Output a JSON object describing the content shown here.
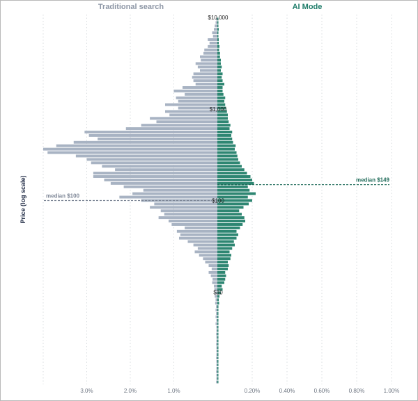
{
  "header": {
    "left_title": "Traditional search",
    "right_title": "AI Mode"
  },
  "colors": {
    "left_bar": "#a8b3c3",
    "right_bar": "#2e8672",
    "left_title": "#8e97a6",
    "right_title": "#1f7d6a",
    "grid": "#d8dcdf",
    "axis_label": "#1f2a44",
    "tick_label": "#6c7480",
    "left_median": "#7d8696",
    "right_median": "#1f6b59"
  },
  "chart_data": {
    "type": "bar",
    "orientation": "back-to-back horizontal histogram",
    "ylabel": "Price (log scale)",
    "y_scale": "log",
    "y_range": [
      1,
      10000
    ],
    "y_ticks": [
      {
        "value": 10000,
        "label": "$10,000"
      },
      {
        "value": 1000,
        "label": "$1,000"
      },
      {
        "value": 100,
        "label": "$100"
      },
      {
        "value": 10,
        "label": "$10"
      }
    ],
    "left_axis": {
      "unit": "%",
      "max": 4.0,
      "ticks": [
        {
          "value": 3.0,
          "label": "3.0%"
        },
        {
          "value": 2.0,
          "label": "2.0%"
        },
        {
          "value": 1.0,
          "label": "1.0%"
        }
      ]
    },
    "right_axis": {
      "unit": "%",
      "max": 1.0,
      "ticks": [
        {
          "value": 0.2,
          "label": "0.20%"
        },
        {
          "value": 0.4,
          "label": "0.40%"
        },
        {
          "value": 0.6,
          "label": "0.60%"
        },
        {
          "value": 0.8,
          "label": "0.80%"
        },
        {
          "value": 1.0,
          "label": "1.00%"
        }
      ]
    },
    "medians": [
      {
        "side": "left",
        "value": 100,
        "label": "median $100"
      },
      {
        "side": "right",
        "value": 149,
        "label": "median $149"
      }
    ],
    "series": [
      {
        "name": "Traditional search",
        "values": [
          0.03,
          0.02,
          0.02,
          0.03,
          0.02,
          0.02,
          0.02,
          0.03,
          0.02,
          0.02,
          0.02,
          0.03,
          0.02,
          0.02,
          0.03,
          0.02,
          0.02,
          0.04,
          0.02,
          0.04,
          0.03,
          0.04,
          0.03,
          0.05,
          0.04,
          0.06,
          0.05,
          0.07,
          0.08,
          0.12,
          0.11,
          0.15,
          0.2,
          0.13,
          0.2,
          0.28,
          0.33,
          0.42,
          0.52,
          0.45,
          0.55,
          0.68,
          0.88,
          0.85,
          0.93,
          0.75,
          1.05,
          1.12,
          1.35,
          1.22,
          1.3,
          1.55,
          1.45,
          1.75,
          2.25,
          1.95,
          1.7,
          2.15,
          2.45,
          2.6,
          2.85,
          2.85,
          2.35,
          2.65,
          2.9,
          3.0,
          3.25,
          3.9,
          4.0,
          3.7,
          3.3,
          2.75,
          2.95,
          3.05,
          2.1,
          1.75,
          1.4,
          1.55,
          1.1,
          1.2,
          0.9,
          1.2,
          0.9,
          0.95,
          0.75,
          1.0,
          0.8,
          0.5,
          0.55,
          0.58,
          0.55,
          0.4,
          0.45,
          0.5,
          0.38,
          0.4,
          0.32,
          0.3,
          0.22,
          0.18,
          0.22,
          0.1,
          0.12,
          0.08,
          0.06,
          0.04,
          0.03
        ]
      },
      {
        "name": "AI Mode",
        "values": [
          0.005,
          0.003,
          0.004,
          0.003,
          0.004,
          0.002,
          0.004,
          0.002,
          0.003,
          0.002,
          0.003,
          0.002,
          0.002,
          0.002,
          0.003,
          0.002,
          0.002,
          0.002,
          0.003,
          0.002,
          0.003,
          0.005,
          0.004,
          0.01,
          0.008,
          0.012,
          0.02,
          0.03,
          0.025,
          0.04,
          0.045,
          0.05,
          0.045,
          0.06,
          0.065,
          0.06,
          0.075,
          0.08,
          0.07,
          0.085,
          0.1,
          0.095,
          0.11,
          0.12,
          0.11,
          0.13,
          0.145,
          0.16,
          0.155,
          0.14,
          0.125,
          0.15,
          0.18,
          0.2,
          0.175,
          0.22,
          0.185,
          0.175,
          0.21,
          0.2,
          0.19,
          0.17,
          0.155,
          0.14,
          0.13,
          0.12,
          0.115,
          0.11,
          0.1,
          0.105,
          0.09,
          0.085,
          0.08,
          0.085,
          0.07,
          0.075,
          0.065,
          0.06,
          0.06,
          0.055,
          0.05,
          0.045,
          0.04,
          0.045,
          0.035,
          0.03,
          0.03,
          0.04,
          0.03,
          0.025,
          0.03,
          0.02,
          0.025,
          0.02,
          0.02,
          0.015,
          0.015,
          0.01,
          0.012,
          0.008,
          0.008,
          0.006,
          0.005,
          0.008,
          0.005,
          0.006,
          0.006
        ]
      }
    ]
  }
}
